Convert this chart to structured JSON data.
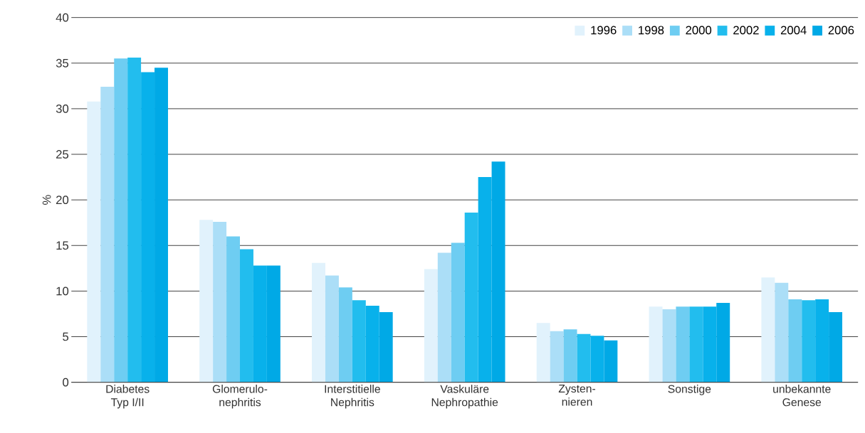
{
  "chart_data": {
    "type": "bar",
    "ylabel": "%",
    "categories": [
      "Diabetes\nTyp I/II",
      "Glomerulo-\nnephritis",
      "Interstitielle\nNephritis",
      "Vaskuläre\nNephropathie",
      "Zysten-\nnieren",
      "Sonstige",
      "unbekannte\nGenese"
    ],
    "series": [
      {
        "name": "1996",
        "color": "#e1f2fc",
        "values": [
          30.8,
          17.8,
          13.1,
          12.4,
          6.5,
          8.3,
          11.5
        ]
      },
      {
        "name": "1998",
        "color": "#abdef7",
        "values": [
          32.4,
          17.6,
          11.7,
          14.2,
          5.6,
          8.0,
          10.9
        ]
      },
      {
        "name": "2000",
        "color": "#6ecdf2",
        "values": [
          35.5,
          16.0,
          10.4,
          15.3,
          5.8,
          8.3,
          9.1
        ]
      },
      {
        "name": "2002",
        "color": "#22bdee",
        "values": [
          35.6,
          14.6,
          9.0,
          18.6,
          5.3,
          8.3,
          9.0
        ]
      },
      {
        "name": "2004",
        "color": "#08b1eb",
        "values": [
          34.0,
          12.8,
          8.4,
          22.5,
          5.1,
          8.3,
          9.1
        ]
      },
      {
        "name": "2006",
        "color": "#00a9e6",
        "values": [
          34.5,
          12.8,
          7.7,
          24.2,
          4.6,
          8.7,
          7.7
        ]
      }
    ],
    "ylim": [
      0,
      40
    ],
    "yticks": [
      0,
      5,
      10,
      15,
      20,
      25,
      30,
      35,
      40
    ],
    "grid": "y",
    "legend": "top right"
  }
}
